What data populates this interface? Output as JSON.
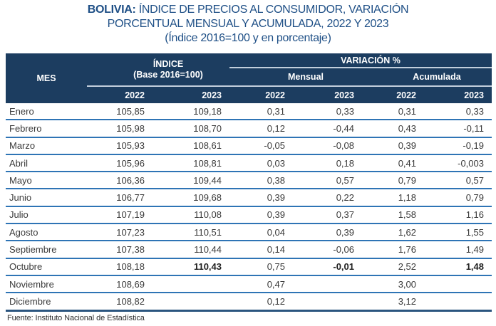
{
  "title": {
    "prefix": "BOLIVIA:",
    "line1_rest": " ÍNDICE DE PRECIOS AL CONSUMIDOR, VARIACIÓN",
    "line2": "PORCENTUAL MENSUAL Y ACUMULADA, 2022 Y 2023",
    "line3": "(Índice 2016=100 y en porcentaje)"
  },
  "table": {
    "col_mes": "MES",
    "group_indice_line1": "ÍNDICE",
    "group_indice_line2": "(Base 2016=100)",
    "group_variacion": "VARIACIÓN %",
    "group_mensual": "Mensual",
    "group_acumulada": "Acumulada",
    "years": [
      "2022",
      "2023",
      "2022",
      "2023",
      "2022",
      "2023"
    ],
    "rows": [
      {
        "mes": "Enero",
        "i2022": "105,85",
        "i2023": "109,18",
        "m2022": "0,31",
        "m2023": "0,33",
        "a2022": "0,31",
        "a2023": "0,33"
      },
      {
        "mes": "Febrero",
        "i2022": "105,98",
        "i2023": "108,70",
        "m2022": "0,12",
        "m2023": "-0,44",
        "a2022": "0,43",
        "a2023": "-0,11"
      },
      {
        "mes": "Marzo",
        "i2022": "105,93",
        "i2023": "108,61",
        "m2022": "-0,05",
        "m2023": "-0,08",
        "a2022": "0,39",
        "a2023": "-0,19"
      },
      {
        "mes": "Abril",
        "i2022": "105,96",
        "i2023": "108,81",
        "m2022": "0,03",
        "m2023": "0,18",
        "a2022": "0,41",
        "a2023": "-0,003"
      },
      {
        "mes": "Mayo",
        "i2022": "106,36",
        "i2023": "109,44",
        "m2022": "0,38",
        "m2023": "0,57",
        "a2022": "0,79",
        "a2023": "0,57"
      },
      {
        "mes": "Junio",
        "i2022": "106,77",
        "i2023": "109,68",
        "m2022": "0,39",
        "m2023": "0,22",
        "a2022": "1,18",
        "a2023": "0,79"
      },
      {
        "mes": "Julio",
        "i2022": "107,19",
        "i2023": "110,08",
        "m2022": "0,39",
        "m2023": "0,37",
        "a2022": "1,58",
        "a2023": "1,16"
      },
      {
        "mes": "Agosto",
        "i2022": "107,23",
        "i2023": "110,51",
        "m2022": "0,04",
        "m2023": "0,39",
        "a2022": "1,62",
        "a2023": "1,55"
      },
      {
        "mes": "Septiembre",
        "i2022": "107,38",
        "i2023": "110,44",
        "m2022": "0,14",
        "m2023": "-0,06",
        "a2022": "1,76",
        "a2023": "1,49"
      },
      {
        "mes": "Octubre",
        "i2022": "108,18",
        "i2023": "110,43",
        "m2022": "0,75",
        "m2023": "-0,01",
        "a2022": "2,52",
        "a2023": "1,48",
        "bold": [
          "i2023",
          "m2023",
          "a2023"
        ]
      },
      {
        "mes": "Noviembre",
        "i2022": "108,69",
        "i2023": "",
        "m2022": "0,47",
        "m2023": "",
        "a2022": "3,00",
        "a2023": ""
      },
      {
        "mes": "Diciembre",
        "i2022": "108,82",
        "i2023": "",
        "m2022": "0,12",
        "m2023": "",
        "a2022": "3,12",
        "a2023": ""
      }
    ]
  },
  "footer": {
    "source": "Fuente: Instituto Nacional de Estadística"
  },
  "colors": {
    "header_bg": "#1c3d60",
    "title_text": "#1e4f86",
    "row_separator": "#2e74b5",
    "header_separator": "#c2cfdc",
    "bottom_bar": "#2b557f",
    "body_text": "#3a3a3a",
    "header_text": "#ffffff"
  }
}
